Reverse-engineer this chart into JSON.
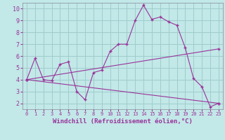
{
  "title": "",
  "xlabel": "Windchill (Refroidissement éolien,°C)",
  "ylabel": "",
  "bg_color": "#c2e8e8",
  "grid_color": "#a0cccc",
  "line_color": "#993399",
  "xlim": [
    -0.5,
    23.5
  ],
  "ylim": [
    1.5,
    10.5
  ],
  "xticks": [
    0,
    1,
    2,
    3,
    4,
    5,
    6,
    7,
    8,
    9,
    10,
    11,
    12,
    13,
    14,
    15,
    16,
    17,
    18,
    19,
    20,
    21,
    22,
    23
  ],
  "yticks": [
    2,
    3,
    4,
    5,
    6,
    7,
    8,
    9,
    10
  ],
  "line1_x": [
    0,
    1,
    2,
    3,
    4,
    5,
    6,
    7,
    8,
    9,
    10,
    11,
    12,
    13,
    14,
    15,
    16,
    17,
    18,
    19,
    20,
    21,
    22,
    23
  ],
  "line1_y": [
    4.0,
    5.8,
    4.0,
    3.9,
    5.3,
    5.5,
    3.0,
    2.3,
    4.6,
    4.8,
    6.4,
    7.0,
    7.0,
    9.0,
    10.3,
    9.1,
    9.3,
    8.9,
    8.6,
    6.7,
    4.1,
    3.4,
    1.7,
    2.0
  ],
  "line2_x": [
    0,
    23
  ],
  "line2_y": [
    4.0,
    6.6
  ],
  "line3_x": [
    0,
    23
  ],
  "line3_y": [
    4.0,
    2.0
  ],
  "marker": "+"
}
